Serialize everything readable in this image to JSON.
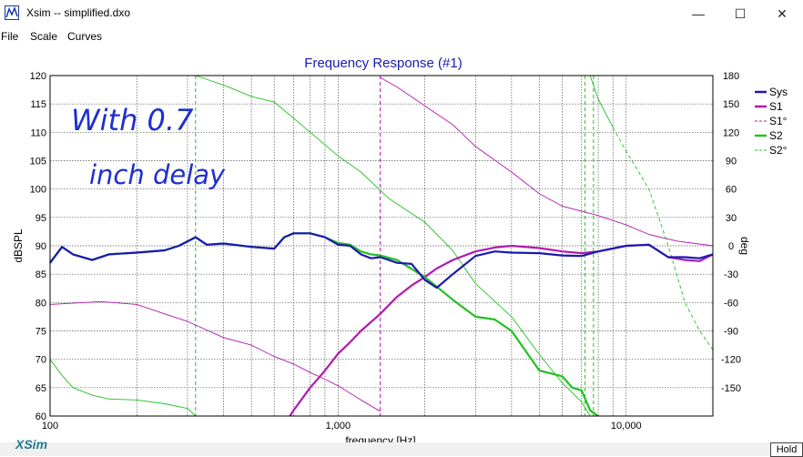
{
  "window": {
    "title": "Xsim -- simplified.dxo",
    "minimize_glyph": "—",
    "maximize_glyph": "☐",
    "close_glyph": "✕"
  },
  "menu": [
    "File",
    "Scale",
    "Curves"
  ],
  "footer": {
    "logo_text": "XSim",
    "hold_label": "Hold"
  },
  "chart_data": {
    "type": "line",
    "title": "Frequency Response (#1)",
    "xlabel": "frequency [Hz]",
    "ylabel": "dBSPL",
    "y2label": "deg",
    "xscale": "log",
    "xlim": [
      100,
      20000
    ],
    "ylim": [
      60,
      120
    ],
    "y2lim": [
      -180,
      180
    ],
    "grid": true,
    "legend_position": "top-right",
    "x_tick_labels": [
      {
        "value": 100,
        "label": "100"
      },
      {
        "value": 1000,
        "label": "1,000"
      },
      {
        "value": 10000,
        "label": "10,000"
      }
    ],
    "y_ticks": [
      60,
      65,
      70,
      75,
      80,
      85,
      90,
      95,
      100,
      105,
      110,
      115,
      120
    ],
    "y2_ticks": [
      -150,
      -120,
      -90,
      -60,
      -30,
      0,
      30,
      60,
      90,
      120,
      150,
      180
    ],
    "markers_hz": [
      320,
      1400,
      7200,
      7700
    ],
    "annotation": [
      "With 0.7",
      "inch delay"
    ],
    "series": [
      {
        "name": "Sys",
        "axis": "left",
        "color": "#1a1ab0",
        "dash": "solid",
        "width": 2.2,
        "x": [
          100,
          110,
          120,
          140,
          160,
          200,
          250,
          280,
          320,
          350,
          400,
          500,
          600,
          650,
          700,
          800,
          900,
          1000,
          1100,
          1200,
          1300,
          1400,
          1500,
          1600,
          1800,
          2000,
          2200,
          2500,
          3000,
          3500,
          4000,
          5000,
          6000,
          7000,
          8000,
          10000,
          12000,
          14000,
          16000,
          18000,
          20000
        ],
        "y": [
          87,
          89.8,
          88.5,
          87.5,
          88.5,
          88.8,
          89.2,
          90,
          91.5,
          90.2,
          90.4,
          89.8,
          89.5,
          91.5,
          92.2,
          92.2,
          91.5,
          90.2,
          90,
          88.5,
          87.8,
          88,
          87.5,
          87,
          86.8,
          84,
          82.6,
          85,
          88.2,
          89,
          88.8,
          88.7,
          88.3,
          88.2,
          89,
          90,
          90.2,
          88,
          88,
          87.8,
          88.5
        ]
      },
      {
        "name": "S1",
        "axis": "left",
        "color": "#b01ab0",
        "dash": "solid",
        "width": 2.2,
        "x": [
          680,
          700,
          800,
          900,
          1000,
          1100,
          1200,
          1400,
          1600,
          1800,
          2000,
          2200,
          2500,
          3000,
          3500,
          4000,
          5000,
          6000,
          7000,
          8000,
          10000,
          12000,
          14000,
          16000,
          18000,
          20000
        ],
        "y": [
          60,
          61,
          65,
          68,
          71,
          73,
          75,
          78,
          81,
          83,
          84.5,
          86,
          87.5,
          89,
          89.7,
          90,
          89.6,
          89,
          88.7,
          89,
          90,
          90.2,
          88,
          87.5,
          87.3,
          88.5
        ]
      },
      {
        "name": "S1°",
        "axis": "right",
        "color": "#b01ab0",
        "dash": "solid",
        "width": 0.9,
        "x": [
          100,
          150,
          200,
          250,
          300,
          400,
          500,
          600,
          700,
          800,
          900,
          1000,
          1200,
          1400
        ],
        "y": [
          -62,
          -59,
          -62,
          -72,
          -80,
          -97,
          -105,
          -117,
          -125,
          -134,
          -141,
          -148,
          -163,
          -175
        ],
        "x2": [
          1400,
          1600,
          2000,
          2500,
          3000,
          4000,
          5000,
          6000,
          8000,
          10000,
          12000,
          15000,
          20000
        ],
        "y2": [
          178,
          168,
          148,
          128,
          105,
          78,
          55,
          42,
          32,
          22,
          12,
          5,
          0
        ]
      },
      {
        "name": "S2",
        "axis": "left",
        "color": "#22c022",
        "dash": "solid",
        "width": 2.2,
        "x": [
          100,
          110,
          120,
          140,
          160,
          200,
          250,
          280,
          320,
          350,
          400,
          500,
          600,
          650,
          700,
          800,
          900,
          1000,
          1100,
          1200,
          1300,
          1400,
          1600,
          2000,
          2500,
          3000,
          3500,
          4000,
          5000,
          5500,
          6000,
          6500,
          7000,
          7500,
          8000
        ],
        "y": [
          87,
          89.8,
          88.5,
          87.5,
          88.5,
          88.8,
          89.2,
          90,
          91.5,
          90.2,
          90.4,
          89.8,
          89.5,
          91.5,
          92.2,
          92.2,
          91.5,
          90.5,
          90.2,
          89,
          88.5,
          88.3,
          87.5,
          84.5,
          80.5,
          77.5,
          77,
          75,
          68,
          67.5,
          67,
          65,
          64.5,
          61,
          60
        ]
      },
      {
        "name": "S2°",
        "axis": "right",
        "color": "#22c022",
        "dash": "solid",
        "width": 0.9,
        "x": [
          100,
          110,
          120,
          140,
          160,
          200,
          250,
          300,
          320
        ],
        "y": [
          -120,
          -137,
          -150,
          -158,
          -162,
          -163,
          -167,
          -172,
          -180
        ],
        "x2": [
          320,
          400,
          500,
          600,
          700,
          800,
          1000,
          1200,
          1500,
          2000,
          2500,
          3000,
          4000,
          5000,
          6000,
          7000,
          7500
        ],
        "y2": [
          180,
          170,
          158,
          152,
          135,
          120,
          95,
          78,
          50,
          25,
          -5,
          -40,
          -75,
          -115,
          -145,
          -165,
          -180
        ],
        "x3": [
          7500,
          8000,
          9000,
          10000,
          12000,
          14000,
          16000,
          18000,
          20000
        ],
        "y3": [
          180,
          155,
          125,
          100,
          60,
          0,
          -60,
          -90,
          -110
        ],
        "x3_dashed_split": 9000
      }
    ]
  }
}
